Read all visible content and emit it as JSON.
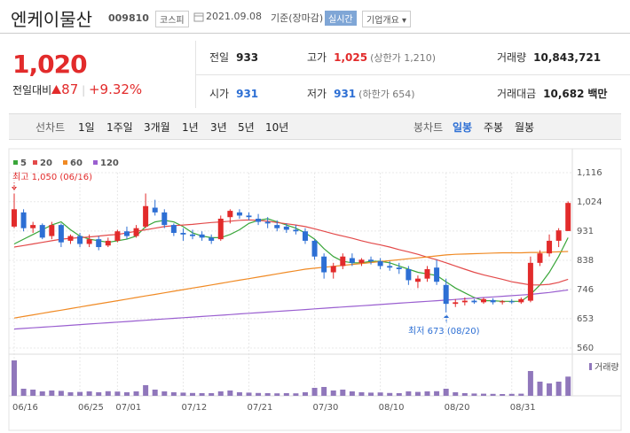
{
  "header": {
    "name": "엔케이물산",
    "code": "009810",
    "market": "코스피",
    "date": "2021.09.08",
    "basis": "기준(장마감)",
    "realtime": "실시간",
    "overview": "기업개요"
  },
  "quote": {
    "price": "1,020",
    "change_label": "전일대비",
    "change": "87",
    "change_rate": "+9.32%"
  },
  "summary": [
    {
      "label": "전일",
      "value": "933"
    },
    {
      "label": "고가",
      "value": "1,025",
      "note": "(상한가 1,210)"
    },
    {
      "label": "거래량",
      "value": "10,843,721"
    },
    {
      "label": "시가",
      "value": "931"
    },
    {
      "label": "저가",
      "value": "931",
      "note": "(하한가 654)"
    },
    {
      "label": "거래대금",
      "value": "10,682",
      "unit": "백만"
    }
  ],
  "tabs": {
    "line_chart": "선차트",
    "periods": [
      "1일",
      "1주일",
      "3개월",
      "1년",
      "3년",
      "5년",
      "10년"
    ],
    "candle_chart": "봉차트",
    "candle_periods": [
      "일봉",
      "주봉",
      "월봉"
    ]
  },
  "chart_data": {
    "type": "candlestick",
    "categories": [
      "06/16",
      null,
      null,
      null,
      null,
      null,
      null,
      "06/25",
      null,
      null,
      null,
      "07/01",
      null,
      null,
      null,
      null,
      null,
      null,
      "07/12",
      null,
      null,
      null,
      null,
      null,
      null,
      "07/21",
      null,
      null,
      null,
      null,
      null,
      null,
      "07/30",
      null,
      null,
      null,
      null,
      null,
      null,
      "08/10",
      null,
      null,
      null,
      null,
      null,
      null,
      "08/20",
      null,
      null,
      null,
      null,
      null,
      null,
      "08/31",
      null,
      null,
      null,
      null,
      null,
      null
    ],
    "open": [
      945,
      990,
      940,
      950,
      915,
      950,
      900,
      915,
      890,
      905,
      885,
      900,
      930,
      915,
      945,
      1005,
      990,
      950,
      925,
      920,
      920,
      910,
      905,
      975,
      990,
      980,
      970,
      960,
      950,
      945,
      935,
      930,
      900,
      850,
      800,
      820,
      845,
      830,
      840,
      835,
      820,
      815,
      810,
      770,
      780,
      815,
      760,
      700,
      705,
      710,
      705,
      712,
      705,
      708,
      705,
      710,
      830,
      860,
      900,
      931
    ],
    "high": [
      1050,
      1000,
      960,
      955,
      960,
      955,
      920,
      925,
      920,
      915,
      910,
      935,
      945,
      950,
      1050,
      1030,
      1000,
      955,
      940,
      935,
      930,
      920,
      980,
      1000,
      1000,
      990,
      985,
      975,
      965,
      955,
      950,
      940,
      905,
      860,
      830,
      860,
      860,
      845,
      850,
      845,
      835,
      830,
      820,
      790,
      820,
      840,
      780,
      715,
      720,
      715,
      720,
      718,
      712,
      715,
      720,
      850,
      870,
      920,
      940,
      1025
    ],
    "low": [
      940,
      930,
      925,
      905,
      905,
      880,
      890,
      880,
      880,
      870,
      880,
      895,
      905,
      910,
      940,
      980,
      940,
      915,
      900,
      905,
      900,
      890,
      900,
      955,
      970,
      965,
      950,
      940,
      930,
      925,
      920,
      890,
      840,
      780,
      780,
      810,
      820,
      820,
      825,
      810,
      805,
      795,
      760,
      750,
      770,
      760,
      673,
      690,
      695,
      700,
      700,
      698,
      698,
      700,
      700,
      705,
      820,
      850,
      880,
      931
    ],
    "close": [
      1000,
      940,
      950,
      910,
      950,
      895,
      915,
      890,
      905,
      880,
      900,
      930,
      915,
      940,
      1010,
      990,
      950,
      925,
      920,
      915,
      910,
      900,
      970,
      995,
      980,
      975,
      960,
      955,
      940,
      935,
      930,
      900,
      850,
      800,
      820,
      850,
      830,
      840,
      835,
      820,
      815,
      810,
      775,
      780,
      810,
      770,
      700,
      705,
      710,
      705,
      715,
      705,
      708,
      705,
      715,
      830,
      860,
      900,
      933,
      1020
    ],
    "up_color": "#e22b2b",
    "down_color": "#2d6fd4",
    "series": [
      {
        "name": "5",
        "color": "#3aa63a",
        "values": [
          890,
          905,
          920,
          935,
          950,
          960,
          935,
          915,
          905,
          900,
          895,
          900,
          905,
          915,
          945,
          960,
          965,
          960,
          945,
          925,
          915,
          910,
          910,
          920,
          935,
          955,
          965,
          970,
          960,
          950,
          940,
          925,
          905,
          875,
          850,
          835,
          830,
          830,
          835,
          835,
          830,
          820,
          810,
          800,
          795,
          790,
          770,
          750,
          735,
          720,
          710,
          710,
          708,
          708,
          708,
          730,
          760,
          800,
          850,
          910
        ]
      },
      {
        "name": "20",
        "color": "#e34a4a",
        "values": [
          880,
          885,
          890,
          895,
          900,
          905,
          908,
          910,
          912,
          915,
          918,
          920,
          925,
          930,
          935,
          940,
          945,
          948,
          950,
          952,
          955,
          958,
          960,
          962,
          965,
          966,
          965,
          962,
          958,
          954,
          950,
          945,
          938,
          930,
          922,
          915,
          908,
          900,
          893,
          887,
          880,
          872,
          865,
          857,
          848,
          840,
          830,
          820,
          810,
          800,
          792,
          785,
          778,
          770,
          765,
          760,
          760,
          762,
          768,
          778
        ]
      },
      {
        "name": "60",
        "color": "#f08a24",
        "values": [
          655,
          660,
          665,
          670,
          675,
          680,
          685,
          690,
          695,
          700,
          705,
          710,
          715,
          720,
          725,
          730,
          735,
          740,
          745,
          750,
          755,
          760,
          765,
          770,
          775,
          780,
          785,
          790,
          795,
          800,
          805,
          810,
          813,
          816,
          819,
          822,
          825,
          828,
          831,
          834,
          837,
          840,
          843,
          846,
          849,
          852,
          855,
          857,
          858,
          859,
          860,
          861,
          862,
          862,
          862,
          863,
          863,
          864,
          865,
          866
        ]
      },
      {
        "name": "120",
        "color": "#9a5fd0",
        "values": [
          620,
          622,
          624,
          626,
          628,
          630,
          632,
          634,
          636,
          638,
          640,
          642,
          644,
          646,
          648,
          650,
          652,
          654,
          656,
          658,
          660,
          662,
          664,
          666,
          668,
          670,
          672,
          674,
          676,
          678,
          680,
          682,
          684,
          686,
          688,
          690,
          692,
          694,
          696,
          698,
          700,
          702,
          704,
          706,
          708,
          710,
          712,
          714,
          716,
          718,
          720,
          722,
          724,
          726,
          728,
          730,
          733,
          736,
          740,
          744
        ]
      }
    ],
    "volume": {
      "name": "거래량",
      "color": "#9077bb",
      "values": [
        20000000,
        4000000,
        3500000,
        2500000,
        3000000,
        2800000,
        2000000,
        2200000,
        2500000,
        2000000,
        2600000,
        2400000,
        2000000,
        2500000,
        6000000,
        3500000,
        2500000,
        2000000,
        1800000,
        1600000,
        1500000,
        1500000,
        2500000,
        3000000,
        2000000,
        1800000,
        1600000,
        1500000,
        1400000,
        1500000,
        1400000,
        2000000,
        4500000,
        5000000,
        3000000,
        3500000,
        2500000,
        2000000,
        1800000,
        1900000,
        1600000,
        1500000,
        2500000,
        2200000,
        2500000,
        2600000,
        4000000,
        2000000,
        1500000,
        1300000,
        1200000,
        1100000,
        1000000,
        1100000,
        1200000,
        14000000,
        8000000,
        7000000,
        8000000,
        10843721
      ]
    },
    "ylim": [
      560,
      1116
    ],
    "yticks": [
      {
        "value": 1116,
        "label": "1,116"
      },
      {
        "value": 1024,
        "label": "1,024"
      },
      931,
      838,
      746,
      653,
      560
    ],
    "annotations": [
      "최고 1,050 (06/16)",
      "최저 673 (08/20)"
    ],
    "grid": true
  }
}
